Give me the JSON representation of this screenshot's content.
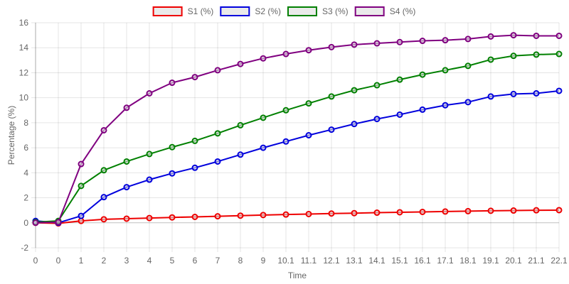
{
  "chart_data": {
    "type": "line",
    "xlabel": "Time",
    "ylabel": "Percentage (%)",
    "ylim": [
      -2,
      16
    ],
    "y_ticks": [
      -2,
      0,
      2,
      4,
      6,
      8,
      10,
      12,
      14,
      16
    ],
    "x_tick_labels": [
      "0",
      "0",
      "1",
      "2",
      "3",
      "4",
      "5",
      "6",
      "7",
      "8",
      "9",
      "10.1",
      "11.1",
      "12.1",
      "13.1",
      "14.1",
      "15.1",
      "16.1",
      "17.1",
      "18.1",
      "19.1",
      "20.1",
      "21.1",
      "22.1"
    ],
    "grid": true,
    "legend_position": "top-center",
    "series": [
      {
        "name": "S1 (%)",
        "color": "#ee0000",
        "values": [
          0.0,
          -0.05,
          0.15,
          0.28,
          0.33,
          0.38,
          0.43,
          0.47,
          0.52,
          0.57,
          0.62,
          0.66,
          0.7,
          0.74,
          0.77,
          0.81,
          0.84,
          0.87,
          0.9,
          0.93,
          0.96,
          0.98,
          1.0,
          1.01
        ]
      },
      {
        "name": "S2 (%)",
        "color": "#0000dd",
        "values": [
          0.15,
          0.0,
          0.55,
          2.05,
          2.85,
          3.45,
          3.95,
          4.4,
          4.9,
          5.45,
          6.0,
          6.5,
          7.0,
          7.45,
          7.9,
          8.3,
          8.65,
          9.05,
          9.4,
          9.65,
          10.1,
          10.3,
          10.35,
          10.55
        ]
      },
      {
        "name": "S3 (%)",
        "color": "#008000",
        "values": [
          0.05,
          0.15,
          2.95,
          4.2,
          4.9,
          5.5,
          6.05,
          6.55,
          7.15,
          7.8,
          8.4,
          9.0,
          9.55,
          10.1,
          10.6,
          11.0,
          11.45,
          11.85,
          12.2,
          12.55,
          13.05,
          13.35,
          13.45,
          13.5
        ]
      },
      {
        "name": "S4 (%)",
        "color": "#800080",
        "values": [
          0.0,
          0.05,
          4.7,
          7.4,
          9.2,
          10.35,
          11.2,
          11.65,
          12.2,
          12.7,
          13.15,
          13.5,
          13.8,
          14.05,
          14.25,
          14.35,
          14.45,
          14.55,
          14.6,
          14.7,
          14.9,
          15.0,
          14.95,
          14.95
        ]
      }
    ]
  }
}
